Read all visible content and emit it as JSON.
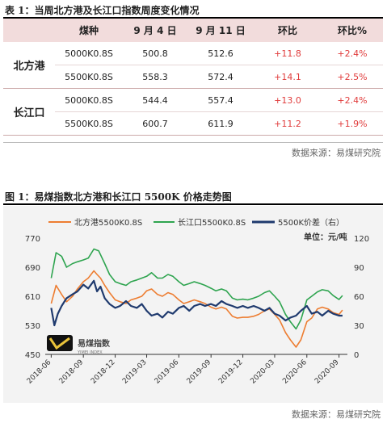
{
  "table_caption": "表 1：当周北方港及长江口指数周度变化情况",
  "table": {
    "headers": [
      "",
      "煤种",
      "9 月 4 日",
      "9 月 11 日",
      "环比",
      "环比%"
    ],
    "groups": [
      {
        "port": "北方港",
        "rows": [
          {
            "type": "5000K0.8S",
            "sep4": "500.8",
            "sep11": "512.6",
            "chg": "+11.8",
            "pct": "+2.4%"
          },
          {
            "type": "5500K0.8S",
            "sep4": "558.3",
            "sep11": "572.4",
            "chg": "+14.1",
            "pct": "+2.5%"
          }
        ]
      },
      {
        "port": "长江口",
        "rows": [
          {
            "type": "5000K0.8S",
            "sep4": "544.4",
            "sep11": "557.4",
            "chg": "+13.0",
            "pct": "+2.4%"
          },
          {
            "type": "5500K0.8S",
            "sep4": "600.7",
            "sep11": "611.9",
            "chg": "+11.2",
            "pct": "+1.9%"
          }
        ]
      }
    ],
    "source": "数据来源：易煤研究院"
  },
  "figure_caption": "图 1：易煤指数北方港和长江口 5500K 价格走势图",
  "figure_source": "数据来源：易煤研究院",
  "watermark_text": "易煤指数",
  "chart_data": {
    "type": "line",
    "title": "",
    "unit_label": "单位：元/吨",
    "legend_position": "top",
    "x_ticks": [
      "2018-06",
      "2018-09",
      "2018-12",
      "2019-03",
      "2019-06",
      "2019-09",
      "2019-12",
      "2020-03",
      "2020-06",
      "2020-09"
    ],
    "y_left": {
      "min": 450,
      "max": 770,
      "ticks": [
        450,
        530,
        610,
        690,
        770
      ]
    },
    "y_right": {
      "min": 0,
      "max": 120,
      "ticks": [
        0,
        30,
        60,
        90,
        120
      ]
    },
    "series": [
      {
        "name": "北方港5500K0.8S",
        "axis": "left",
        "color": "#ed7d31",
        "points": [
          [
            "2018-06-01",
            590
          ],
          [
            "2018-06-15",
            640
          ],
          [
            "2018-07-01",
            615
          ],
          [
            "2018-07-15",
            595
          ],
          [
            "2018-08-01",
            610
          ],
          [
            "2018-08-15",
            630
          ],
          [
            "2018-09-01",
            650
          ],
          [
            "2018-09-15",
            660
          ],
          [
            "2018-10-01",
            680
          ],
          [
            "2018-10-10",
            670
          ],
          [
            "2018-10-20",
            660
          ],
          [
            "2018-11-01",
            640
          ],
          [
            "2018-11-15",
            620
          ],
          [
            "2018-12-01",
            600
          ],
          [
            "2018-12-15",
            595
          ],
          [
            "2019-01-01",
            590
          ],
          [
            "2019-01-15",
            600
          ],
          [
            "2019-02-01",
            605
          ],
          [
            "2019-02-15",
            610
          ],
          [
            "2019-03-01",
            625
          ],
          [
            "2019-03-15",
            630
          ],
          [
            "2019-04-01",
            615
          ],
          [
            "2019-04-15",
            610
          ],
          [
            "2019-05-01",
            620
          ],
          [
            "2019-05-15",
            615
          ],
          [
            "2019-06-01",
            600
          ],
          [
            "2019-06-15",
            590
          ],
          [
            "2019-07-01",
            595
          ],
          [
            "2019-07-15",
            600
          ],
          [
            "2019-08-01",
            595
          ],
          [
            "2019-08-15",
            590
          ],
          [
            "2019-09-01",
            580
          ],
          [
            "2019-09-15",
            575
          ],
          [
            "2019-10-01",
            580
          ],
          [
            "2019-10-15",
            575
          ],
          [
            "2019-11-01",
            555
          ],
          [
            "2019-11-15",
            550
          ],
          [
            "2019-12-01",
            552
          ],
          [
            "2019-12-15",
            552
          ],
          [
            "2020-01-01",
            555
          ],
          [
            "2020-01-15",
            560
          ],
          [
            "2020-02-01",
            570
          ],
          [
            "2020-02-15",
            575
          ],
          [
            "2020-03-01",
            560
          ],
          [
            "2020-03-15",
            545
          ],
          [
            "2020-04-01",
            510
          ],
          [
            "2020-04-15",
            490
          ],
          [
            "2020-05-01",
            470
          ],
          [
            "2020-05-15",
            490
          ],
          [
            "2020-06-01",
            540
          ],
          [
            "2020-06-15",
            550
          ],
          [
            "2020-07-01",
            575
          ],
          [
            "2020-07-15",
            580
          ],
          [
            "2020-08-01",
            575
          ],
          [
            "2020-08-15",
            565
          ],
          [
            "2020-09-01",
            560
          ],
          [
            "2020-09-11",
            572
          ]
        ]
      },
      {
        "name": "长江口5500K0.8S",
        "axis": "left",
        "color": "#2ea44f",
        "points": [
          [
            "2018-06-01",
            660
          ],
          [
            "2018-06-15",
            730
          ],
          [
            "2018-07-01",
            720
          ],
          [
            "2018-07-15",
            690
          ],
          [
            "2018-08-01",
            700
          ],
          [
            "2018-08-15",
            705
          ],
          [
            "2018-09-01",
            710
          ],
          [
            "2018-09-15",
            715
          ],
          [
            "2018-10-01",
            740
          ],
          [
            "2018-10-15",
            735
          ],
          [
            "2018-11-01",
            700
          ],
          [
            "2018-11-15",
            670
          ],
          [
            "2018-12-01",
            650
          ],
          [
            "2018-12-15",
            645
          ],
          [
            "2019-01-01",
            640
          ],
          [
            "2019-01-15",
            650
          ],
          [
            "2019-02-01",
            655
          ],
          [
            "2019-02-15",
            660
          ],
          [
            "2019-03-01",
            665
          ],
          [
            "2019-03-15",
            675
          ],
          [
            "2019-04-01",
            660
          ],
          [
            "2019-04-15",
            660
          ],
          [
            "2019-05-01",
            670
          ],
          [
            "2019-05-15",
            665
          ],
          [
            "2019-06-01",
            650
          ],
          [
            "2019-06-15",
            640
          ],
          [
            "2019-07-01",
            645
          ],
          [
            "2019-07-15",
            650
          ],
          [
            "2019-08-01",
            645
          ],
          [
            "2019-08-15",
            640
          ],
          [
            "2019-09-01",
            632
          ],
          [
            "2019-09-15",
            625
          ],
          [
            "2019-10-01",
            630
          ],
          [
            "2019-10-15",
            625
          ],
          [
            "2019-11-01",
            605
          ],
          [
            "2019-11-15",
            600
          ],
          [
            "2019-12-01",
            602
          ],
          [
            "2019-12-15",
            600
          ],
          [
            "2020-01-01",
            605
          ],
          [
            "2020-01-15",
            610
          ],
          [
            "2020-02-01",
            620
          ],
          [
            "2020-02-15",
            625
          ],
          [
            "2020-03-01",
            610
          ],
          [
            "2020-03-15",
            595
          ],
          [
            "2020-04-01",
            560
          ],
          [
            "2020-04-15",
            540
          ],
          [
            "2020-05-01",
            520
          ],
          [
            "2020-05-15",
            545
          ],
          [
            "2020-06-01",
            600
          ],
          [
            "2020-06-15",
            610
          ],
          [
            "2020-07-01",
            622
          ],
          [
            "2020-07-15",
            628
          ],
          [
            "2020-08-01",
            625
          ],
          [
            "2020-08-15",
            612
          ],
          [
            "2020-09-01",
            601
          ],
          [
            "2020-09-11",
            612
          ]
        ]
      },
      {
        "name": "5500K价差（右）",
        "axis": "right",
        "color": "#1f3a6e",
        "points": [
          [
            "2018-06-01",
            48
          ],
          [
            "2018-06-10",
            30
          ],
          [
            "2018-06-20",
            42
          ],
          [
            "2018-07-01",
            50
          ],
          [
            "2018-07-15",
            58
          ],
          [
            "2018-08-01",
            62
          ],
          [
            "2018-08-15",
            65
          ],
          [
            "2018-09-01",
            72
          ],
          [
            "2018-09-15",
            68
          ],
          [
            "2018-10-01",
            76
          ],
          [
            "2018-10-10",
            65
          ],
          [
            "2018-10-20",
            70
          ],
          [
            "2018-11-01",
            58
          ],
          [
            "2018-11-15",
            52
          ],
          [
            "2018-12-01",
            48
          ],
          [
            "2018-12-15",
            50
          ],
          [
            "2019-01-01",
            55
          ],
          [
            "2019-01-15",
            50
          ],
          [
            "2019-02-01",
            48
          ],
          [
            "2019-02-15",
            52
          ],
          [
            "2019-03-01",
            45
          ],
          [
            "2019-03-15",
            40
          ],
          [
            "2019-04-01",
            42
          ],
          [
            "2019-04-15",
            38
          ],
          [
            "2019-05-01",
            44
          ],
          [
            "2019-05-15",
            42
          ],
          [
            "2019-06-01",
            48
          ],
          [
            "2019-06-15",
            50
          ],
          [
            "2019-07-01",
            45
          ],
          [
            "2019-07-15",
            50
          ],
          [
            "2019-08-01",
            52
          ],
          [
            "2019-08-15",
            50
          ],
          [
            "2019-09-01",
            52
          ],
          [
            "2019-09-15",
            50
          ],
          [
            "2019-10-01",
            55
          ],
          [
            "2019-10-15",
            52
          ],
          [
            "2019-11-01",
            50
          ],
          [
            "2019-11-15",
            48
          ],
          [
            "2019-12-01",
            50
          ],
          [
            "2019-12-15",
            48
          ],
          [
            "2020-01-01",
            50
          ],
          [
            "2020-01-15",
            48
          ],
          [
            "2020-02-01",
            45
          ],
          [
            "2020-02-15",
            48
          ],
          [
            "2020-03-01",
            42
          ],
          [
            "2020-03-15",
            40
          ],
          [
            "2020-04-01",
            35
          ],
          [
            "2020-04-15",
            38
          ],
          [
            "2020-05-01",
            40
          ],
          [
            "2020-05-15",
            45
          ],
          [
            "2020-06-01",
            50
          ],
          [
            "2020-06-15",
            42
          ],
          [
            "2020-07-01",
            44
          ],
          [
            "2020-07-15",
            40
          ],
          [
            "2020-08-01",
            45
          ],
          [
            "2020-08-15",
            42
          ],
          [
            "2020-09-01",
            40
          ],
          [
            "2020-09-11",
            40
          ]
        ]
      }
    ]
  }
}
